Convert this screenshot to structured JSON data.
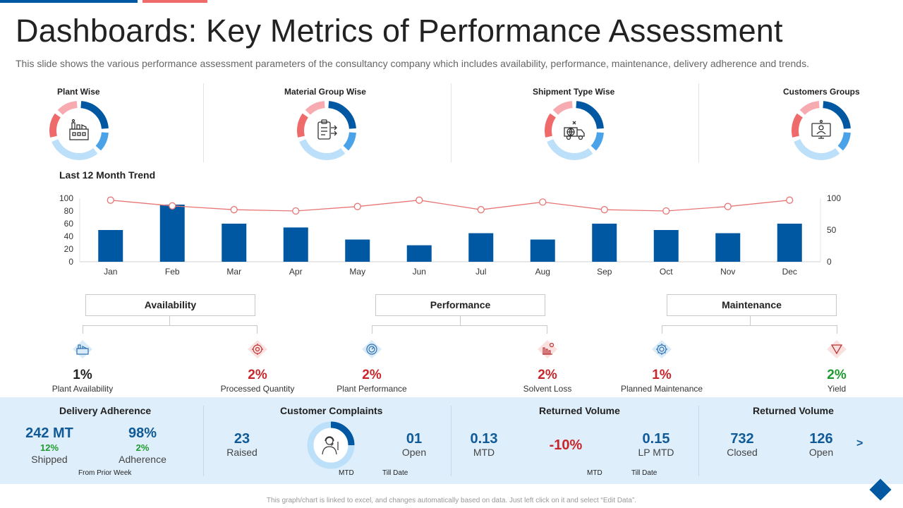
{
  "header": {
    "title": "Dashboards: Key Metrics of Performance Assessment",
    "subtitle": "This slide shows the various performance  assessment parameters of the consultancy company which includes availability, performance, maintenance, delivery adherence and trends."
  },
  "donuts": [
    {
      "label": "Plant Wise",
      "icon": "factory-icon"
    },
    {
      "label": "Material Group Wise",
      "icon": "clipboard-transfer-icon"
    },
    {
      "label": "Shipment Type Wise",
      "icon": "truck-globe-icon"
    },
    {
      "label": "Customers Groups",
      "icon": "customer-screen-icon"
    }
  ],
  "donut_colors": [
    "#0058a3",
    "#4aa3e8",
    "#bde0fa",
    "#ef6a6a",
    "#f7aab0"
  ],
  "trend": {
    "title": "Last 12 Month Trend"
  },
  "chart_data": {
    "type": "bar",
    "title": "Last 12 Month Trend",
    "categories": [
      "Jan",
      "Feb",
      "Mar",
      "Apr",
      "May",
      "Jun",
      "Jul",
      "Aug",
      "Sep",
      "Oct",
      "Nov",
      "Dec"
    ],
    "series": [
      {
        "type": "bar",
        "axis": "left",
        "values": [
          50,
          90,
          60,
          54,
          35,
          26,
          45,
          35,
          60,
          50,
          45,
          60
        ],
        "color": "#0058a3"
      },
      {
        "type": "line",
        "axis": "right",
        "values": [
          97,
          88,
          82,
          80,
          87,
          97,
          82,
          94,
          82,
          80,
          87,
          97
        ],
        "color": "#e87676"
      }
    ],
    "y_left": {
      "ticks": [
        0,
        20,
        40,
        60,
        80,
        100
      ],
      "ylim": [
        0,
        100
      ]
    },
    "y_right": {
      "ticks": [
        0,
        50,
        100
      ],
      "ylim": [
        0,
        100
      ]
    },
    "grid": false
  },
  "categories": {
    "availability": "Availability",
    "performance": "Performance",
    "maintenance": "Maintenance"
  },
  "metrics": [
    {
      "value": "1%",
      "label": "Plant Availability",
      "icon": "factory-icon",
      "color": "#1e9a2e"
    },
    {
      "value": "2%",
      "label": "Processed Quantity",
      "icon": "gear-globe-icon",
      "color": "#c8262b"
    },
    {
      "value": "2%",
      "label": "Plant Performance",
      "icon": "gauge-gear-icon",
      "color": "#c8262b"
    },
    {
      "value": "2%",
      "label": "Solvent Loss",
      "icon": "declining-chart-icon",
      "color": "#c8262b"
    },
    {
      "value": "1%",
      "label": "Planned Maintenance",
      "icon": "maintenance-gear-icon",
      "color": "#c8262b"
    },
    {
      "value": "2%",
      "label": "Yield",
      "icon": "funnel-icon",
      "color": "#1e9a2e"
    }
  ],
  "delivery": {
    "title": "Delivery Adherence",
    "shipped_value": "242 MT",
    "shipped_pct": "12%",
    "shipped_label": "Shipped",
    "adherence_value": "98%",
    "adherence_pct": "2%",
    "adherence_label": "Adherence",
    "note": "From Prior Week"
  },
  "complaints": {
    "title": "Customer Complaints",
    "raised_value": "23",
    "raised_label": "Raised",
    "open_value": "01",
    "open_label": "Open",
    "mtd": "MTD",
    "till_date": "Till Date",
    "icon": "support-agent-icon"
  },
  "returned_1": {
    "title": "Returned Volume",
    "mtd_value": "0.13",
    "mtd_label": "MTD",
    "change": "-10%",
    "lp_value": "0.15",
    "lp_label": "LP MTD",
    "mtd_note": "MTD",
    "till_note": "Till Date"
  },
  "returned_2": {
    "title": "Returned Volume",
    "closed_value": "732",
    "closed_label": "Closed",
    "open_value": "126",
    "open_label": "Open",
    "next": ">"
  },
  "footer": {
    "note": "This graph/chart is linked to excel, and changes automatically based on data. Just left click on it and select “Edit Data”."
  }
}
